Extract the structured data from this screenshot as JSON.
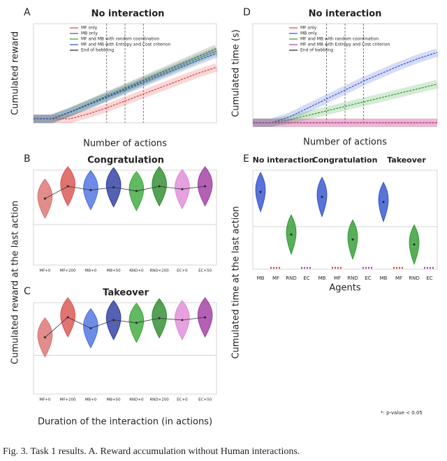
{
  "caption": "Fig. 3.   Task 1 results. A. Reward accumulation without Human interactions.",
  "footnote": "*: p-value < 0.05",
  "chart_data": [
    {
      "panel": "A",
      "type": "line",
      "title": "No interaction",
      "x_label": "Number of actions",
      "y_label": "Cumulated reward",
      "x": [
        0,
        100,
        200,
        300,
        400,
        500,
        600,
        700,
        800,
        900,
        1000
      ],
      "xlim": [
        0,
        1000
      ],
      "ylim": [
        0,
        1000
      ],
      "series": [
        {
          "name": "MF only",
          "color": "#e03a3a",
          "values": [
            40,
            40,
            40,
            90,
            150,
            220,
            290,
            360,
            430,
            500,
            560
          ]
        },
        {
          "name": "MB only",
          "color": "#555555",
          "values": [
            40,
            40,
            110,
            190,
            270,
            350,
            430,
            510,
            590,
            670,
            750
          ]
        },
        {
          "name": "MF and MB with random coordination",
          "color": "#2f9a2f",
          "values": [
            40,
            40,
            108,
            185,
            262,
            340,
            418,
            495,
            572,
            650,
            725
          ]
        },
        {
          "name": "MF and MB with Entropy and Cost criterion",
          "color": "#3050d0",
          "values": [
            40,
            40,
            105,
            180,
            255,
            330,
            405,
            480,
            555,
            630,
            700
          ]
        }
      ],
      "markers": {
        "name": "End of babbling",
        "color": "#222222",
        "x": [
          400,
          500,
          600
        ]
      }
    },
    {
      "panel": "D",
      "type": "line",
      "title": "No interaction",
      "x_label": "Number of actions",
      "y_label": "Cumulated time (s)",
      "x": [
        0,
        100,
        200,
        300,
        400,
        500,
        600,
        700,
        800,
        900,
        1000
      ],
      "xlim": [
        0,
        1000
      ],
      "ylim": [
        0,
        1000
      ],
      "series": [
        {
          "name": "MF only",
          "color": "#e03a3a",
          "values": [
            0,
            0,
            0,
            0,
            0,
            0,
            0,
            0,
            0,
            0,
            0
          ]
        },
        {
          "name": "MB only",
          "color": "#3050d0",
          "values": [
            0,
            0,
            60,
            150,
            240,
            330,
            420,
            500,
            580,
            650,
            710
          ]
        },
        {
          "name": "MF and MB with random coordination",
          "color": "#2f9a2f",
          "values": [
            0,
            0,
            30,
            75,
            120,
            165,
            210,
            255,
            300,
            345,
            390
          ]
        },
        {
          "name": "MF and MB with Entropy and Cost criterion",
          "color": "#b03ab0",
          "values": [
            0,
            0,
            0,
            0,
            0,
            0,
            0,
            0,
            0,
            0,
            0
          ]
        }
      ],
      "markers": {
        "name": "End of babbling",
        "color": "#222222",
        "x": [
          400,
          500,
          600
        ]
      }
    },
    {
      "panel": "B",
      "type": "violin",
      "title": "Congratulation",
      "y_label": "Cumulated reward at the last action",
      "categories": [
        "MF+0",
        "MF+200",
        "MB+0",
        "MB+50",
        "RND+0",
        "RND+200",
        "EC+0",
        "EC+50"
      ],
      "colors": [
        "#d9706e",
        "#d9504e",
        "#4a6ee0",
        "#2a3aa0",
        "#3aa83a",
        "#2a8a2a",
        "#e08ad8",
        "#a03aa0"
      ],
      "values": [
        700,
        830,
        790,
        820,
        780,
        830,
        800,
        830
      ],
      "ylim": [
        0,
        1000
      ]
    },
    {
      "panel": "C",
      "type": "violin",
      "title": "Takeover",
      "x_label": "Duration of the interaction (in actions)",
      "categories": [
        "MF+0",
        "MF+200",
        "MB+0",
        "MB+50",
        "RND+0",
        "RND+200",
        "EC+0",
        "EC+50"
      ],
      "colors": [
        "#d9706e",
        "#d9504e",
        "#4a6ee0",
        "#2a3aa0",
        "#3aa83a",
        "#2a8a2a",
        "#e08ad8",
        "#a03aa0"
      ],
      "values": [
        620,
        840,
        720,
        810,
        780,
        830,
        810,
        840
      ],
      "ylim": [
        0,
        1000
      ]
    },
    {
      "panel": "E",
      "type": "violin",
      "y_label": "Cumulated time at the last action",
      "x_label": "Agents",
      "group_labels": [
        "No interaction",
        "Congratulation",
        "Takeover"
      ],
      "categories": [
        "MB",
        "MF",
        "RND",
        "EC",
        "MB",
        "MF",
        "RND",
        "EC",
        "MB",
        "MF",
        "RND",
        "EC"
      ],
      "colors": [
        "#3050d0",
        "#e03a3a",
        "#2f9a2f",
        "#b03ab0",
        "#3050d0",
        "#e03a3a",
        "#2f9a2f",
        "#b03ab0",
        "#3050d0",
        "#e03a3a",
        "#2f9a2f",
        "#b03ab0"
      ],
      "values": [
        780,
        0,
        350,
        0,
        730,
        0,
        300,
        0,
        680,
        0,
        250,
        0
      ],
      "ylim": [
        0,
        1000
      ]
    }
  ]
}
